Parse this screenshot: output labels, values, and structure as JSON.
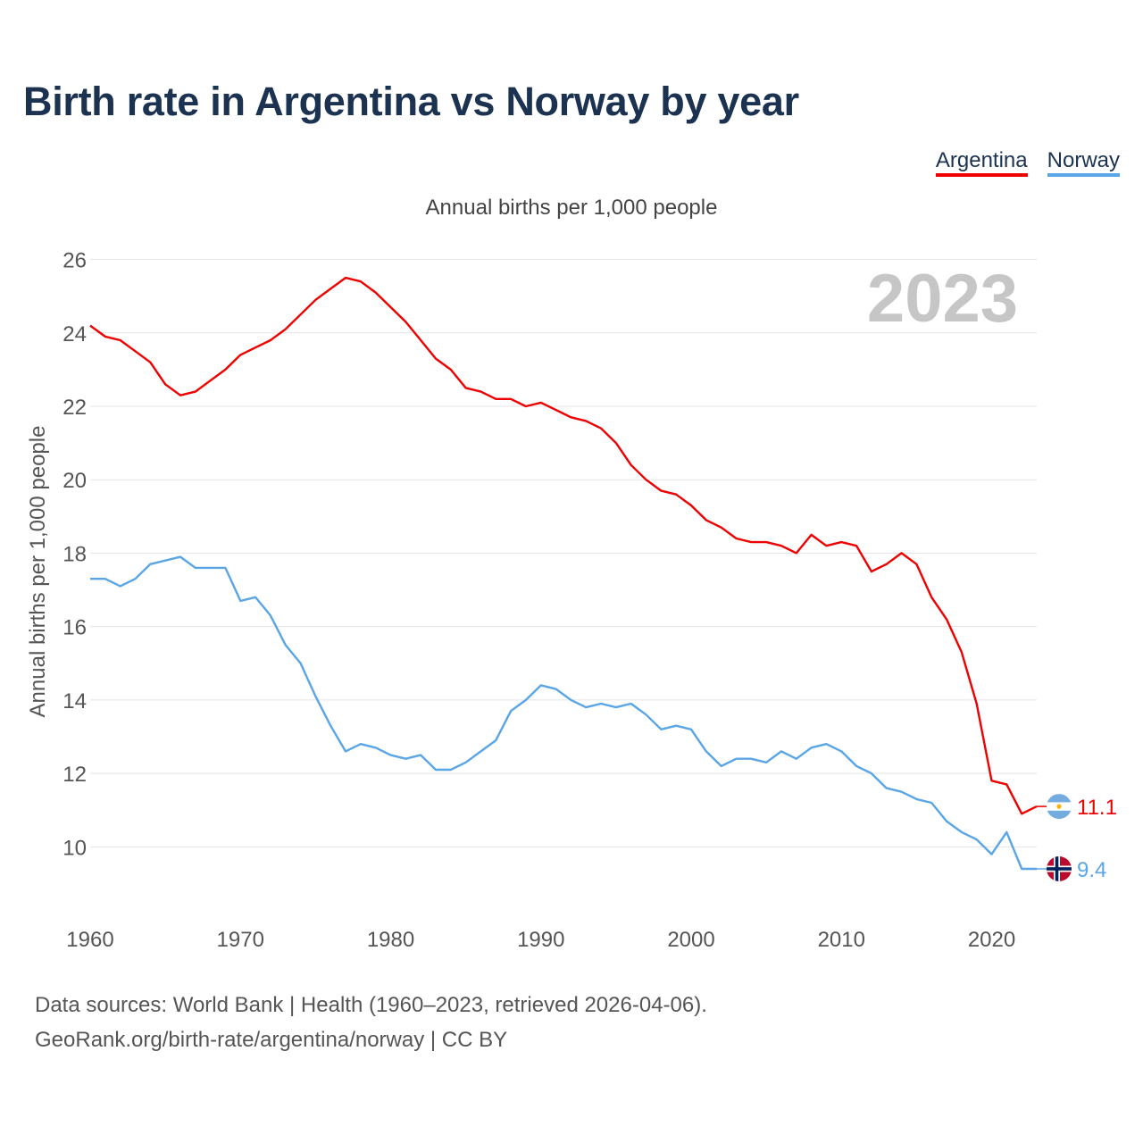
{
  "header": {
    "title": "Birth rate in Argentina vs Norway by year"
  },
  "legend": [
    {
      "label": "Argentina",
      "color": "#ee0000"
    },
    {
      "label": "Norway",
      "color": "#5aa5e6"
    }
  ],
  "chart_data": {
    "type": "line",
    "title": "Birth rate in Argentina vs Norway by year",
    "subtitle": "Annual births per 1,000 people",
    "ylabel": "Annual births per 1,000 people",
    "xlabel": "",
    "year_label": "2023",
    "xlim": [
      1960,
      2023
    ],
    "ylim": [
      8.5,
      26.5
    ],
    "x_ticks": [
      1960,
      1970,
      1980,
      1990,
      2000,
      2010,
      2020
    ],
    "y_ticks": [
      10,
      12,
      14,
      16,
      18,
      20,
      22,
      24,
      26
    ],
    "grid": true,
    "x": [
      1960,
      1961,
      1962,
      1963,
      1964,
      1965,
      1966,
      1967,
      1968,
      1969,
      1970,
      1971,
      1972,
      1973,
      1974,
      1975,
      1976,
      1977,
      1978,
      1979,
      1980,
      1981,
      1982,
      1983,
      1984,
      1985,
      1986,
      1987,
      1988,
      1989,
      1990,
      1991,
      1992,
      1993,
      1994,
      1995,
      1996,
      1997,
      1998,
      1999,
      2000,
      2001,
      2002,
      2003,
      2004,
      2005,
      2006,
      2007,
      2008,
      2009,
      2010,
      2011,
      2012,
      2013,
      2014,
      2015,
      2016,
      2017,
      2018,
      2019,
      2020,
      2021,
      2022,
      2023
    ],
    "series": [
      {
        "name": "Argentina",
        "color": "#ee0000",
        "end_label": "11.1",
        "values": [
          24.2,
          23.9,
          23.8,
          23.5,
          23.2,
          22.6,
          22.3,
          22.4,
          22.7,
          23.0,
          23.4,
          23.6,
          23.8,
          24.1,
          24.5,
          24.9,
          25.2,
          25.5,
          25.4,
          25.1,
          24.7,
          24.3,
          23.8,
          23.3,
          23.0,
          22.5,
          22.4,
          22.2,
          22.2,
          22.0,
          22.1,
          21.9,
          21.7,
          21.6,
          21.4,
          21.0,
          20.4,
          20.0,
          19.7,
          19.6,
          19.3,
          18.9,
          18.7,
          18.4,
          18.3,
          18.3,
          18.2,
          18.0,
          18.5,
          18.2,
          18.3,
          18.2,
          17.5,
          17.7,
          18.0,
          17.7,
          16.8,
          16.2,
          15.3,
          13.9,
          11.8,
          11.7,
          10.9,
          11.1
        ]
      },
      {
        "name": "Norway",
        "color": "#5aa5e6",
        "end_label": "9.4",
        "values": [
          17.3,
          17.3,
          17.1,
          17.3,
          17.7,
          17.8,
          17.9,
          17.6,
          17.6,
          17.6,
          16.7,
          16.8,
          16.3,
          15.5,
          15.0,
          14.1,
          13.3,
          12.6,
          12.8,
          12.7,
          12.5,
          12.4,
          12.5,
          12.1,
          12.1,
          12.3,
          12.6,
          12.9,
          13.7,
          14.0,
          14.4,
          14.3,
          14.0,
          13.8,
          13.9,
          13.8,
          13.9,
          13.6,
          13.2,
          13.3,
          13.2,
          12.6,
          12.2,
          12.4,
          12.4,
          12.3,
          12.6,
          12.4,
          12.7,
          12.8,
          12.6,
          12.2,
          12.0,
          11.6,
          11.5,
          11.3,
          11.2,
          10.7,
          10.4,
          10.2,
          9.8,
          10.4,
          9.4,
          9.4
        ]
      }
    ]
  },
  "footer": {
    "source_line1": "Data sources: World Bank | Health (1960–2023, retrieved 2026-04-06).",
    "source_line2": "GeoRank.org/birth-rate/argentina/norway | CC BY"
  }
}
